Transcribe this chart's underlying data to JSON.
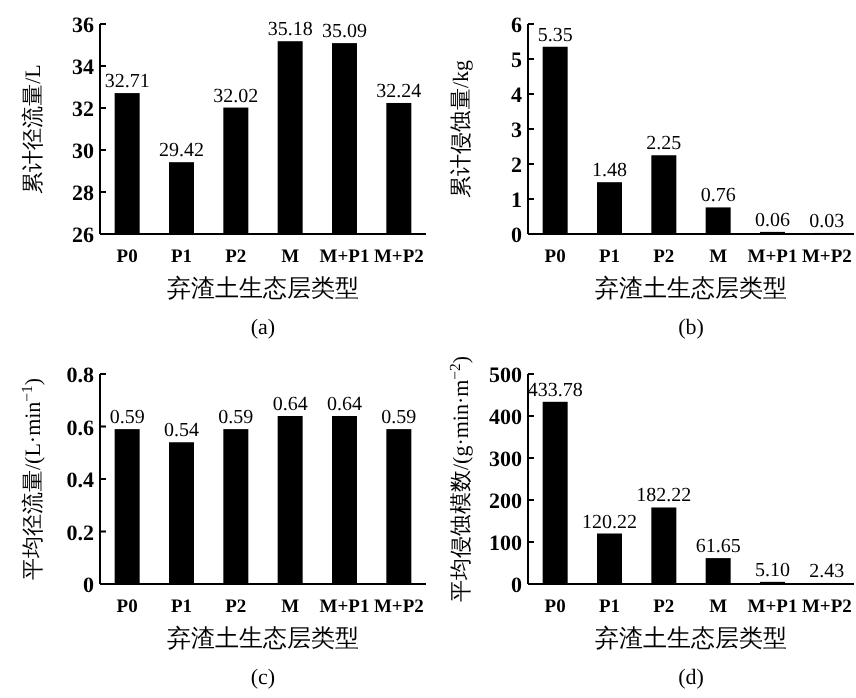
{
  "chart_data": [
    {
      "type": "bar",
      "categories": [
        "P0",
        "P1",
        "P2",
        "M",
        "M+P1",
        "M+P2"
      ],
      "values": [
        32.71,
        29.42,
        32.02,
        35.18,
        35.09,
        32.24
      ],
      "value_labels": [
        "32.71",
        "29.42",
        "32.02",
        "35.18",
        "35.09",
        "32.24"
      ],
      "color": "#000000",
      "xlabel": "弃渣土生态层类型",
      "ylabel": "累计径流量/L",
      "ylim": [
        26,
        36
      ],
      "yticks": [
        26,
        28,
        30,
        32,
        34,
        36
      ],
      "annotations": [
        "(a)"
      ]
    },
    {
      "type": "bar",
      "categories": [
        "P0",
        "P1",
        "P2",
        "M",
        "M+P1",
        "M+P2"
      ],
      "values": [
        5.35,
        1.48,
        2.25,
        0.76,
        0.06,
        0.03
      ],
      "value_labels": [
        "5.35",
        "1.48",
        "2.25",
        "0.76",
        "0.06",
        "0.03"
      ],
      "color": "#000000",
      "xlabel": "弃渣土生态层类型",
      "ylabel": "累计侵蚀量/kg",
      "ylim": [
        0,
        6
      ],
      "yticks": [
        0,
        1,
        2,
        3,
        4,
        5,
        6
      ],
      "annotations": [
        "(b)"
      ]
    },
    {
      "type": "bar",
      "categories": [
        "P0",
        "P1",
        "P2",
        "M",
        "M+P1",
        "M+P2"
      ],
      "values": [
        0.59,
        0.54,
        0.59,
        0.64,
        0.64,
        0.59
      ],
      "value_labels": [
        "0.59",
        "0.54",
        "0.59",
        "0.64",
        "0.64",
        "0.59"
      ],
      "color": "#000000",
      "xlabel": "弃渣土生态层类型",
      "ylabel": "平均径流量/(L·min$^{−1}$)",
      "ylim": [
        0,
        0.8
      ],
      "yticks": [
        {
          "value": 0,
          "label": "0"
        },
        {
          "value": 0.2,
          "label": "0.2"
        },
        {
          "value": 0.4,
          "label": "0.4"
        },
        {
          "value": 0.6,
          "label": "0.6"
        },
        {
          "value": 0.8,
          "label": "0.8"
        }
      ],
      "annotations": [
        "(c)"
      ]
    },
    {
      "type": "bar",
      "categories": [
        "P0",
        "P1",
        "P2",
        "M",
        "M+P1",
        "M+P2"
      ],
      "values": [
        433.78,
        120.22,
        182.22,
        61.65,
        5.1,
        2.43
      ],
      "value_labels": [
        "433.78",
        "120.22",
        "182.22",
        "61.65",
        "5.10",
        "2.43"
      ],
      "color": "#000000",
      "xlabel": "弃渣土生态层类型",
      "ylabel": "平均侵蚀模数/(g·min·m$^{−2}$)",
      "ylim": [
        0,
        500
      ],
      "yticks": [
        0,
        100,
        200,
        300,
        400,
        500
      ],
      "annotations": [
        "(d)"
      ]
    }
  ]
}
